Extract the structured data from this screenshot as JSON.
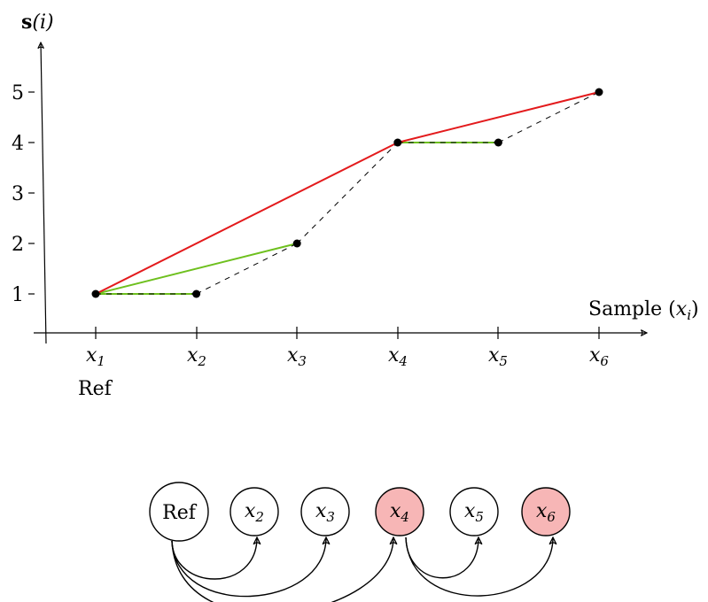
{
  "plot": {
    "y_axis_label_main": "s",
    "y_axis_label_arg": "(i)",
    "x_axis_label_main": "Sample (",
    "x_axis_label_var": "x",
    "x_axis_label_sub": "i",
    "x_axis_label_close": ")",
    "y_ticks": [
      "1",
      "2",
      "3",
      "4",
      "5"
    ],
    "x_ticks": [
      {
        "var": "x",
        "sub": "1"
      },
      {
        "var": "x",
        "sub": "2"
      },
      {
        "var": "x",
        "sub": "3"
      },
      {
        "var": "x",
        "sub": "4"
      },
      {
        "var": "x",
        "sub": "5"
      },
      {
        "var": "x",
        "sub": "6"
      }
    ],
    "ref_label": "Ref"
  },
  "chart_data": {
    "type": "line",
    "points": [
      {
        "x": 1,
        "y": 1
      },
      {
        "x": 2,
        "y": 1
      },
      {
        "x": 3,
        "y": 2
      },
      {
        "x": 4,
        "y": 4
      },
      {
        "x": 5,
        "y": 4
      },
      {
        "x": 6,
        "y": 5
      }
    ],
    "dashed_path": [
      1,
      2,
      3,
      4,
      5,
      6
    ],
    "red_path": [
      1,
      4,
      6
    ],
    "green_segments": [
      [
        1,
        2
      ],
      [
        1,
        3
      ],
      [
        4,
        5
      ]
    ],
    "ylim": [
      0.3,
      5.9
    ],
    "colors": {
      "red": "#e31a1c",
      "green": "#6ec01e",
      "dashed": "#000000"
    }
  },
  "graph": {
    "nodes": [
      {
        "id": "ref",
        "label": "Ref",
        "is_var": false,
        "highlight": false
      },
      {
        "id": "x2",
        "var": "x",
        "sub": "2",
        "is_var": true,
        "highlight": false
      },
      {
        "id": "x3",
        "var": "x",
        "sub": "3",
        "is_var": true,
        "highlight": false
      },
      {
        "id": "x4",
        "var": "x",
        "sub": "4",
        "is_var": true,
        "highlight": true
      },
      {
        "id": "x5",
        "var": "x",
        "sub": "5",
        "is_var": true,
        "highlight": false
      },
      {
        "id": "x6",
        "var": "x",
        "sub": "6",
        "is_var": true,
        "highlight": true
      }
    ],
    "edges": [
      {
        "from": "ref",
        "to": "x2"
      },
      {
        "from": "ref",
        "to": "x3"
      },
      {
        "from": "ref",
        "to": "x4"
      },
      {
        "from": "x4",
        "to": "x5"
      },
      {
        "from": "x4",
        "to": "x6"
      }
    ],
    "highlight_color": "#f7b6b6"
  }
}
